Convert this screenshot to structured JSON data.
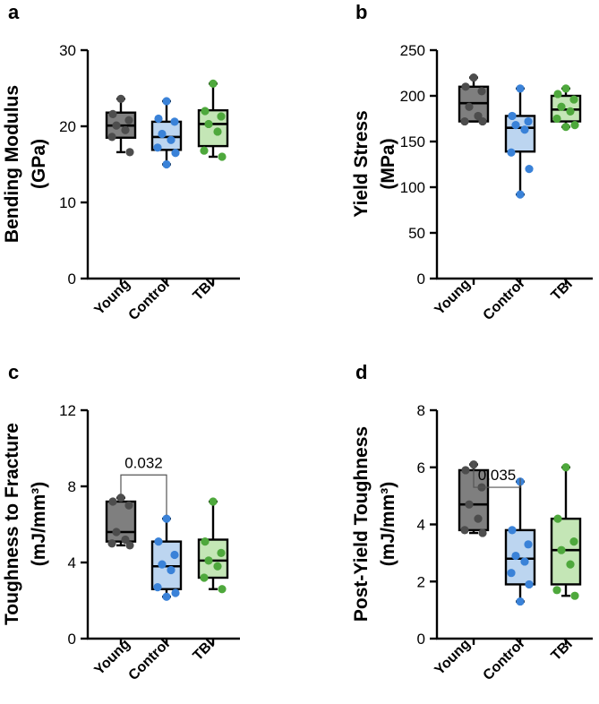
{
  "figure": {
    "width": 669,
    "height": 786
  },
  "group_colors": {
    "Young": {
      "fill": "#7f7f7f",
      "dot": "#4d4d4d"
    },
    "Control": {
      "fill": "#bcd5f0",
      "dot": "#3a82d8"
    },
    "TBI": {
      "fill": "#c4e6b6",
      "dot": "#4ea83c"
    }
  },
  "chart_data": [
    {
      "type": "box",
      "panel_label": "a",
      "title": "",
      "ylabel_lines": [
        "Bending Modulus",
        "(GPa)"
      ],
      "categories": [
        "Young",
        "Control",
        "TBI"
      ],
      "ylim": [
        0,
        30
      ],
      "yticks": [
        0,
        10,
        20,
        30
      ],
      "series": [
        {
          "name": "Young",
          "min": 16.6,
          "q1": 18.5,
          "median": 20.1,
          "q3": 21.8,
          "max": 23.6,
          "points": [
            23.6,
            21.6,
            20.8,
            20.1,
            19.5,
            18.6,
            16.6
          ]
        },
        {
          "name": "Control",
          "min": 15.0,
          "q1": 16.9,
          "median": 18.6,
          "q3": 20.6,
          "max": 23.3,
          "points": [
            23.3,
            21.0,
            20.6,
            19.0,
            18.2,
            17.2,
            16.5,
            15.0
          ]
        },
        {
          "name": "TBI",
          "min": 16.0,
          "q1": 17.4,
          "median": 20.3,
          "q3": 22.1,
          "max": 25.6,
          "points": [
            25.6,
            22.0,
            21.3,
            20.3,
            19.3,
            16.8,
            16.0
          ]
        }
      ],
      "annotations": []
    },
    {
      "type": "box",
      "panel_label": "b",
      "title": "",
      "ylabel_lines": [
        "Yield Stress",
        "(MPa)"
      ],
      "categories": [
        "Young",
        "Control",
        "TBI"
      ],
      "ylim": [
        0,
        250
      ],
      "yticks": [
        0,
        50,
        100,
        150,
        200,
        250
      ],
      "series": [
        {
          "name": "Young",
          "min": 172,
          "q1": 172,
          "median": 192,
          "q3": 210,
          "max": 220,
          "points": [
            220,
            210,
            205,
            188,
            178,
            172,
            172
          ]
        },
        {
          "name": "Control",
          "min": 92,
          "q1": 139,
          "median": 165,
          "q3": 178,
          "max": 208,
          "points": [
            208,
            178,
            172,
            168,
            163,
            138,
            120,
            92
          ]
        },
        {
          "name": "TBI",
          "min": 166,
          "q1": 172,
          "median": 185,
          "q3": 200,
          "max": 208,
          "points": [
            208,
            202,
            196,
            188,
            183,
            175,
            168,
            166
          ]
        }
      ],
      "annotations": []
    },
    {
      "type": "box",
      "panel_label": "c",
      "title": "",
      "ylabel_lines": [
        "Toughness to Fracture",
        "(mJ/mm³)"
      ],
      "categories": [
        "Young",
        "Control",
        "TBI"
      ],
      "ylim": [
        0,
        12
      ],
      "yticks": [
        0,
        4,
        8,
        12
      ],
      "series": [
        {
          "name": "Young",
          "min": 4.9,
          "q1": 5.1,
          "median": 5.6,
          "q3": 7.2,
          "max": 7.4,
          "points": [
            7.4,
            7.2,
            7.0,
            5.6,
            5.2,
            5.0,
            4.9
          ]
        },
        {
          "name": "Control",
          "min": 2.2,
          "q1": 2.6,
          "median": 3.8,
          "q3": 5.1,
          "max": 6.3,
          "points": [
            6.3,
            5.1,
            4.4,
            3.9,
            3.6,
            2.7,
            2.4,
            2.2
          ]
        },
        {
          "name": "TBI",
          "min": 2.6,
          "q1": 3.2,
          "median": 4.1,
          "q3": 5.2,
          "max": 7.2,
          "points": [
            7.2,
            5.1,
            4.5,
            4.1,
            3.8,
            3.2,
            2.6
          ]
        }
      ],
      "annotations": [
        {
          "from": "Young",
          "to": "Control",
          "at": 8.6,
          "text": "0.032"
        }
      ]
    },
    {
      "type": "box",
      "panel_label": "d",
      "title": "",
      "ylabel_lines": [
        "Post-Yield Toughness",
        "(mJ/mm³)"
      ],
      "categories": [
        "Young",
        "Control",
        "TBI"
      ],
      "ylim": [
        0,
        8
      ],
      "yticks": [
        0,
        2,
        4,
        6,
        8
      ],
      "series": [
        {
          "name": "Young",
          "min": 3.7,
          "q1": 3.8,
          "median": 4.7,
          "q3": 5.9,
          "max": 6.1,
          "points": [
            6.1,
            5.9,
            5.3,
            4.7,
            4.2,
            3.8,
            3.7
          ]
        },
        {
          "name": "Control",
          "min": 1.3,
          "q1": 1.9,
          "median": 2.8,
          "q3": 3.8,
          "max": 5.5,
          "points": [
            5.5,
            3.8,
            3.3,
            2.9,
            2.7,
            2.3,
            1.9,
            1.3
          ]
        },
        {
          "name": "TBI",
          "min": 1.5,
          "q1": 1.9,
          "median": 3.1,
          "q3": 4.2,
          "max": 6.0,
          "points": [
            6.0,
            4.2,
            3.4,
            3.1,
            2.6,
            1.7,
            1.5
          ]
        }
      ],
      "annotations": [
        {
          "from": "Young",
          "to": "Control",
          "at": 5.3,
          "text": "0.035"
        }
      ]
    }
  ]
}
